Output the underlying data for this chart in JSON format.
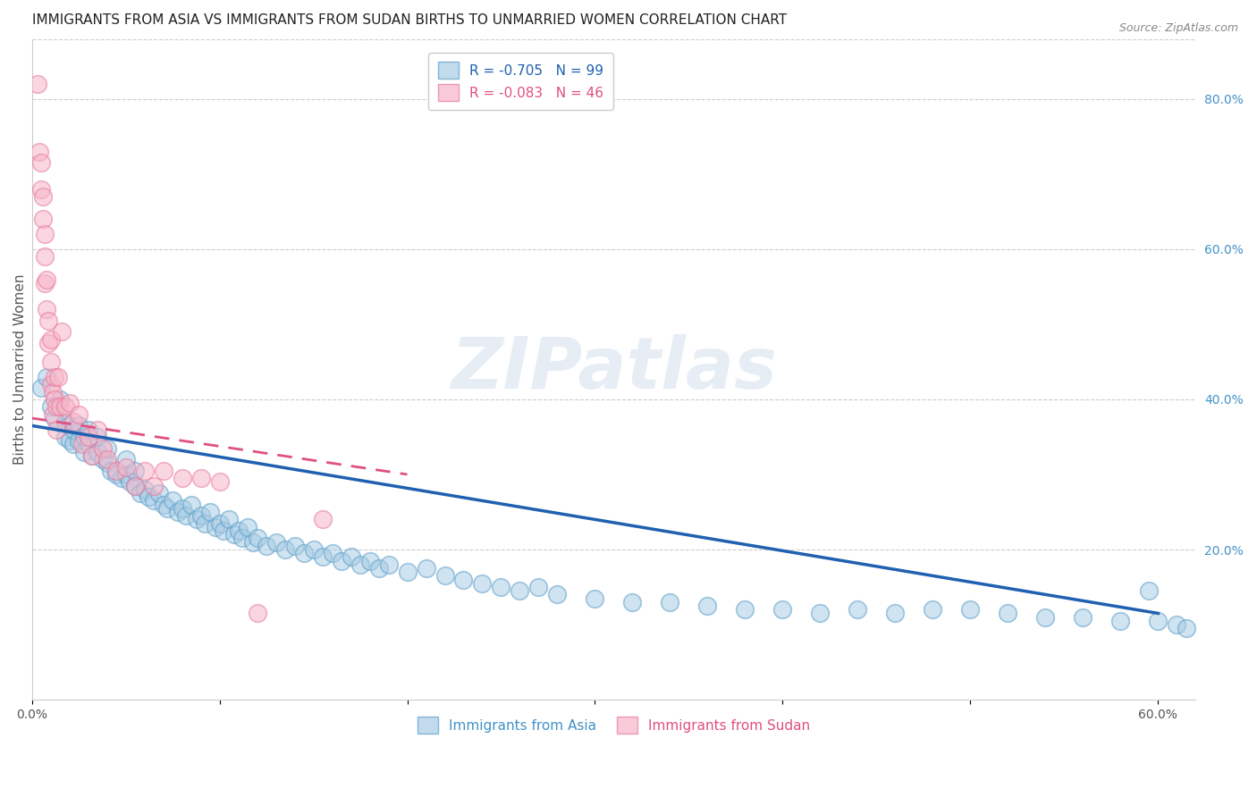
{
  "title": "IMMIGRANTS FROM ASIA VS IMMIGRANTS FROM SUDAN BIRTHS TO UNMARRIED WOMEN CORRELATION CHART",
  "source": "Source: ZipAtlas.com",
  "ylabel": "Births to Unmarried Women",
  "xlim": [
    0.0,
    0.62
  ],
  "ylim": [
    0.0,
    0.88
  ],
  "xtick_positions": [
    0.0,
    0.1,
    0.2,
    0.3,
    0.4,
    0.5,
    0.6
  ],
  "xticklabels": [
    "0.0%",
    "",
    "",
    "",
    "",
    "",
    "60.0%"
  ],
  "yticks_right": [
    0.2,
    0.4,
    0.6,
    0.8
  ],
  "ytick_right_labels": [
    "20.0%",
    "40.0%",
    "60.0%",
    "80.0%"
  ],
  "asia_color": "#a8cce4",
  "asia_color_edge": "#5b9ec9",
  "sudan_color": "#f7b6c8",
  "sudan_color_edge": "#e8799e",
  "legend_label_asia": "R = -0.705   N = 99",
  "legend_label_sudan": "R = -0.083   N = 46",
  "grid_color": "#cccccc",
  "title_fontsize": 11,
  "axis_label_fontsize": 11,
  "tick_label_fontsize": 10,
  "asia_trend_color": "#2060b0",
  "sudan_trend_color": "#e05080",
  "asia_x": [
    0.005,
    0.008,
    0.01,
    0.012,
    0.015,
    0.018,
    0.018,
    0.02,
    0.02,
    0.022,
    0.022,
    0.025,
    0.025,
    0.028,
    0.028,
    0.03,
    0.03,
    0.032,
    0.035,
    0.035,
    0.038,
    0.04,
    0.04,
    0.042,
    0.045,
    0.048,
    0.05,
    0.05,
    0.052,
    0.055,
    0.055,
    0.058,
    0.06,
    0.062,
    0.065,
    0.068,
    0.07,
    0.072,
    0.075,
    0.078,
    0.08,
    0.082,
    0.085,
    0.088,
    0.09,
    0.092,
    0.095,
    0.098,
    0.1,
    0.102,
    0.105,
    0.108,
    0.11,
    0.112,
    0.115,
    0.118,
    0.12,
    0.125,
    0.13,
    0.135,
    0.14,
    0.145,
    0.15,
    0.155,
    0.16,
    0.165,
    0.17,
    0.175,
    0.18,
    0.185,
    0.19,
    0.2,
    0.21,
    0.22,
    0.23,
    0.24,
    0.25,
    0.26,
    0.27,
    0.28,
    0.3,
    0.32,
    0.34,
    0.36,
    0.38,
    0.4,
    0.42,
    0.44,
    0.46,
    0.48,
    0.5,
    0.52,
    0.54,
    0.56,
    0.58,
    0.595,
    0.6,
    0.61,
    0.615
  ],
  "asia_y": [
    0.415,
    0.43,
    0.39,
    0.375,
    0.4,
    0.35,
    0.37,
    0.345,
    0.365,
    0.34,
    0.36,
    0.345,
    0.365,
    0.33,
    0.35,
    0.34,
    0.36,
    0.325,
    0.33,
    0.35,
    0.32,
    0.315,
    0.335,
    0.305,
    0.3,
    0.295,
    0.3,
    0.32,
    0.29,
    0.285,
    0.305,
    0.275,
    0.28,
    0.27,
    0.265,
    0.275,
    0.26,
    0.255,
    0.265,
    0.25,
    0.255,
    0.245,
    0.26,
    0.24,
    0.245,
    0.235,
    0.25,
    0.23,
    0.235,
    0.225,
    0.24,
    0.22,
    0.225,
    0.215,
    0.23,
    0.21,
    0.215,
    0.205,
    0.21,
    0.2,
    0.205,
    0.195,
    0.2,
    0.19,
    0.195,
    0.185,
    0.19,
    0.18,
    0.185,
    0.175,
    0.18,
    0.17,
    0.175,
    0.165,
    0.16,
    0.155,
    0.15,
    0.145,
    0.15,
    0.14,
    0.135,
    0.13,
    0.13,
    0.125,
    0.12,
    0.12,
    0.115,
    0.12,
    0.115,
    0.12,
    0.12,
    0.115,
    0.11,
    0.11,
    0.105,
    0.145,
    0.105,
    0.1,
    0.095
  ],
  "sudan_x": [
    0.003,
    0.004,
    0.005,
    0.005,
    0.006,
    0.006,
    0.007,
    0.007,
    0.007,
    0.008,
    0.008,
    0.009,
    0.009,
    0.01,
    0.01,
    0.01,
    0.011,
    0.011,
    0.012,
    0.012,
    0.013,
    0.013,
    0.014,
    0.015,
    0.016,
    0.018,
    0.02,
    0.022,
    0.025,
    0.027,
    0.03,
    0.032,
    0.035,
    0.038,
    0.04,
    0.045,
    0.05,
    0.055,
    0.06,
    0.065,
    0.07,
    0.08,
    0.09,
    0.1,
    0.12,
    0.155
  ],
  "sudan_y": [
    0.82,
    0.73,
    0.68,
    0.715,
    0.67,
    0.64,
    0.62,
    0.59,
    0.555,
    0.56,
    0.52,
    0.505,
    0.475,
    0.48,
    0.45,
    0.42,
    0.41,
    0.38,
    0.43,
    0.4,
    0.39,
    0.36,
    0.43,
    0.39,
    0.49,
    0.39,
    0.395,
    0.37,
    0.38,
    0.34,
    0.35,
    0.325,
    0.36,
    0.335,
    0.32,
    0.305,
    0.31,
    0.285,
    0.305,
    0.285,
    0.305,
    0.295,
    0.295,
    0.29,
    0.115,
    0.24
  ],
  "asia_trend_x": [
    0.0,
    0.6
  ],
  "asia_trend_y": [
    0.365,
    0.115
  ],
  "sudan_trend_x": [
    0.0,
    0.2
  ],
  "sudan_trend_y": [
    0.375,
    0.3
  ],
  "watermark_text": "ZIPatlas",
  "background_color": "#ffffff"
}
